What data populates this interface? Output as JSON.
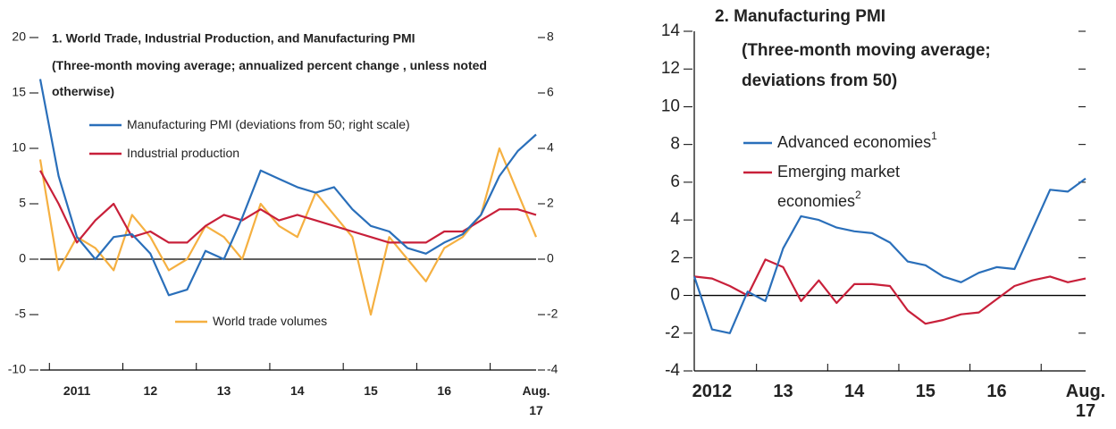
{
  "chart_data": [
    {
      "type": "line",
      "title": "1. World Trade, Industrial Production, and Manufacturing PMI",
      "subtitle": "(Three-month moving average; annualized percent change , unless noted otherwise)",
      "categories": [
        null,
        null,
        "2011",
        null,
        null,
        null,
        "12",
        null,
        null,
        null,
        "13",
        null,
        null,
        null,
        "14",
        null,
        null,
        null,
        "15",
        null,
        null,
        null,
        "16",
        null,
        null,
        null,
        null,
        "Aug. 17"
      ],
      "series": [
        {
          "name": "Manufacturing PMI (deviations from 50; right scale)",
          "color": "#2a6fba",
          "axis": "y2",
          "values": [
            6.5,
            3,
            0.8,
            0,
            0.8,
            0.9,
            0.2,
            -1.3,
            -1.1,
            0.3,
            0,
            1.5,
            3.2,
            2.9,
            2.6,
            2.4,
            2.6,
            1.8,
            1.2,
            1.0,
            0.4,
            0.2,
            0.6,
            0.9,
            1.6,
            3.0,
            3.9,
            4.5
          ]
        },
        {
          "name": "Industrial production",
          "color": "#c8203a",
          "values": [
            8,
            5,
            1.5,
            3.5,
            5,
            2,
            2.5,
            1.5,
            1.5,
            3,
            4,
            3.5,
            4.5,
            3.5,
            4,
            3.5,
            3,
            2.5,
            2,
            1.5,
            1.5,
            1.5,
            2.5,
            2.5,
            3.5,
            4.5,
            4.5,
            4
          ]
        },
        {
          "name": "World trade volumes",
          "color": "#f5b041",
          "values": [
            9,
            -1,
            2,
            1,
            -1,
            4,
            2,
            -1,
            0,
            3,
            2,
            0,
            5,
            3,
            2,
            6,
            4,
            2,
            -5,
            2,
            0,
            -2,
            1,
            2,
            4,
            10,
            6,
            2
          ]
        }
      ],
      "ylim": [
        -10,
        20
      ],
      "yticks": [
        -10,
        -5,
        0,
        5,
        10,
        15,
        20
      ],
      "y2lim": [
        -4,
        8
      ],
      "y2ticks": [
        -4,
        -2,
        0,
        2,
        4,
        6,
        8
      ]
    },
    {
      "type": "line",
      "title": "2. Manufacturing PMI",
      "subtitle": "(Three-month moving average; deviations from 50)",
      "categories": [
        null,
        "2012",
        null,
        null,
        null,
        "13",
        null,
        null,
        null,
        "14",
        null,
        null,
        null,
        "15",
        null,
        null,
        null,
        "16",
        null,
        null,
        null,
        null,
        "Aug. 17"
      ],
      "series": [
        {
          "name": "Advanced economies",
          "note": "1",
          "color": "#2a6fba",
          "values": [
            1,
            -1.8,
            -2,
            0.2,
            -0.3,
            2.5,
            4.2,
            4,
            3.6,
            3.4,
            3.3,
            2.8,
            1.8,
            1.6,
            1.0,
            0.7,
            1.2,
            1.5,
            1.4,
            3.5,
            5.6,
            5.5,
            6.2
          ]
        },
        {
          "name": "Emerging market economies",
          "note": "2",
          "color": "#c8203a",
          "values": [
            1.0,
            0.9,
            0.5,
            0,
            1.9,
            1.5,
            -0.3,
            0.8,
            -0.4,
            0.6,
            0.6,
            0.5,
            -0.8,
            -1.5,
            -1.3,
            -1.0,
            -0.9,
            -0.2,
            0.5,
            0.8,
            1.0,
            0.7,
            0.9
          ]
        }
      ],
      "ylim": [
        -4,
        14
      ],
      "yticks": [
        -4,
        -2,
        0,
        2,
        4,
        6,
        8,
        10,
        12,
        14
      ],
      "legend": "upper left"
    }
  ]
}
